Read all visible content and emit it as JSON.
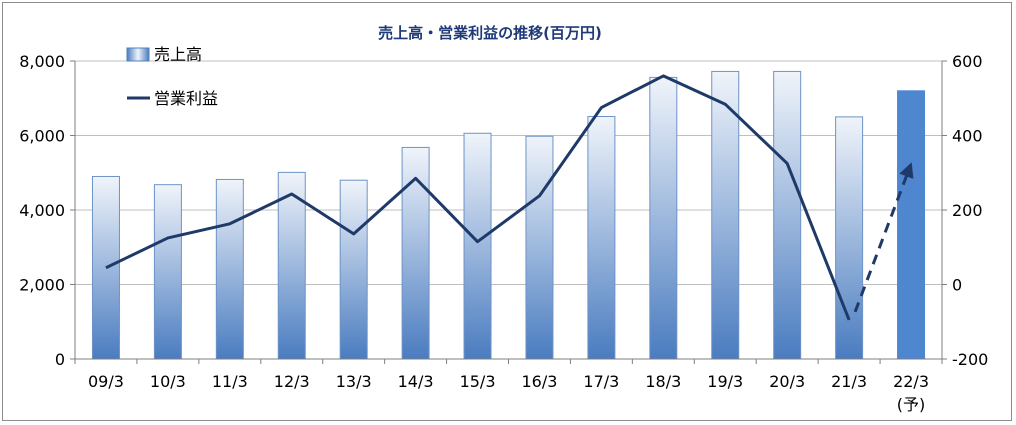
{
  "chart_data": {
    "type": "bar+line",
    "title": "売上高・営業利益の推移(百万円)",
    "categories": [
      "09/3",
      "10/3",
      "11/3",
      "12/3",
      "13/3",
      "14/3",
      "15/3",
      "16/3",
      "17/3",
      "18/3",
      "19/3",
      "20/3",
      "21/3",
      "22/3"
    ],
    "forecast_category_suffix": "(予)",
    "series": [
      {
        "name": "売上高",
        "type": "bar",
        "axis": "left",
        "values": [
          4900,
          4680,
          4820,
          5010,
          4800,
          5680,
          6060,
          5980,
          6510,
          7560,
          7720,
          7720,
          6500,
          7200
        ]
      },
      {
        "name": "営業利益",
        "type": "line",
        "axis": "right",
        "values": [
          45,
          125,
          163,
          243,
          136,
          285,
          115,
          238,
          475,
          560,
          484,
          325,
          -95,
          320
        ],
        "forecast_from_index": 12
      }
    ],
    "left_axis": {
      "ylim": [
        0,
        8000
      ],
      "ticks": [
        "0",
        "2,000",
        "4,000",
        "6,000",
        "8,000"
      ]
    },
    "right_axis": {
      "ylim": [
        -200,
        600
      ],
      "ticks": [
        "-200",
        "0",
        "200",
        "400",
        "600"
      ],
      "negative_color": "#ff0000"
    },
    "legend_position": "top-left",
    "colors": {
      "bar_light": "#e8eef8",
      "bar_dark": "#4f81bd",
      "bar_forecast": "#4f86d0",
      "line": "#1f3a68",
      "title": "#1f3a78"
    }
  }
}
